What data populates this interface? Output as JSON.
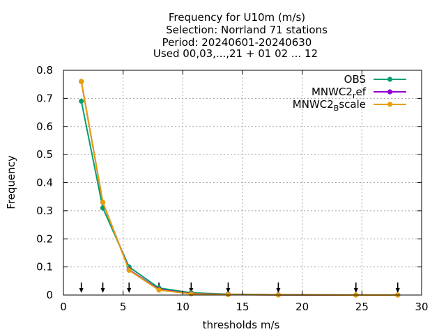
{
  "chart_data": {
    "type": "line",
    "title_lines": [
      "Frequency  for U10m (m/s)",
      "Selection: Norrland     71 stations",
      "Period: 20240601-20240630",
      "Used 00,03,...,21 + 01 02 ... 12"
    ],
    "xlabel": "thresholds m/s",
    "ylabel": "Frequency",
    "xlim": [
      0,
      30
    ],
    "ylim": [
      0,
      0.8
    ],
    "xticks": [
      "0",
      "5",
      "10",
      "15",
      "20",
      "25",
      "30"
    ],
    "yticks": [
      "0",
      "0.1",
      "0.2",
      "0.3",
      "0.4",
      "0.5",
      "0.6",
      "0.7",
      "0.8"
    ],
    "grid": true,
    "legend_position": "top-right",
    "threshold_markers": [
      1.5,
      3.3,
      5.5,
      8.0,
      10.7,
      13.8,
      18.0,
      24.5,
      28.0
    ],
    "series": [
      {
        "name": "OBS",
        "legend_main": "OBS",
        "legend_sub": "",
        "legend_tail": "",
        "color": "#009e73",
        "x": [
          1.5,
          3.3,
          5.5,
          8.0,
          10.7,
          13.8,
          18.0,
          24.5,
          28.0
        ],
        "y": [
          0.69,
          0.31,
          0.1,
          0.025,
          0.008,
          0.003,
          0.001,
          0.0,
          0.0
        ]
      },
      {
        "name": "MNWC2_ref",
        "legend_main": "MNWC2",
        "legend_sub": "r",
        "legend_tail": "ef",
        "color": "#9400d3",
        "x": [
          1.5,
          3.3,
          5.5,
          8.0,
          10.7,
          13.8,
          18.0,
          24.5,
          28.0
        ],
        "y": [
          0.76,
          0.33,
          0.09,
          0.02,
          0.005,
          0.002,
          0.0005,
          0.0,
          0.0
        ]
      },
      {
        "name": "MNWC2_Bscale",
        "legend_main": "MNWC2",
        "legend_sub": "B",
        "legend_tail": "scale",
        "color": "#e69f00",
        "x": [
          1.5,
          3.3,
          5.5,
          8.0,
          10.7,
          13.8,
          18.0,
          24.5,
          28.0
        ],
        "y": [
          0.76,
          0.33,
          0.088,
          0.018,
          0.004,
          0.0015,
          0.0005,
          0.0,
          0.0
        ]
      }
    ]
  }
}
